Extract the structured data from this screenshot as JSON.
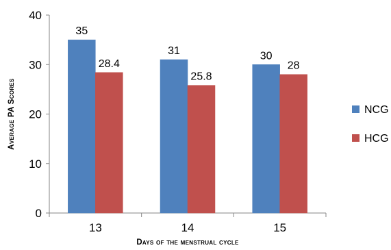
{
  "chart_data": {
    "type": "bar",
    "categories": [
      "13",
      "14",
      "15"
    ],
    "series": [
      {
        "name": "NCG",
        "values": [
          35,
          31,
          30
        ],
        "color": "#4F81BD"
      },
      {
        "name": "HCG",
        "values": [
          28.4,
          25.8,
          28
        ],
        "color": "#C0504D"
      }
    ],
    "data_labels": [
      [
        "35",
        "31",
        "30"
      ],
      [
        "28.4",
        "25.8",
        "28"
      ]
    ],
    "xlabel": "Days of the menstrual cycle",
    "ylabel": "Average PA Scores",
    "ylim": [
      0,
      40
    ],
    "yticks": [
      "0",
      "10",
      "20",
      "30",
      "40"
    ],
    "grid": false,
    "legend_position": "right"
  }
}
